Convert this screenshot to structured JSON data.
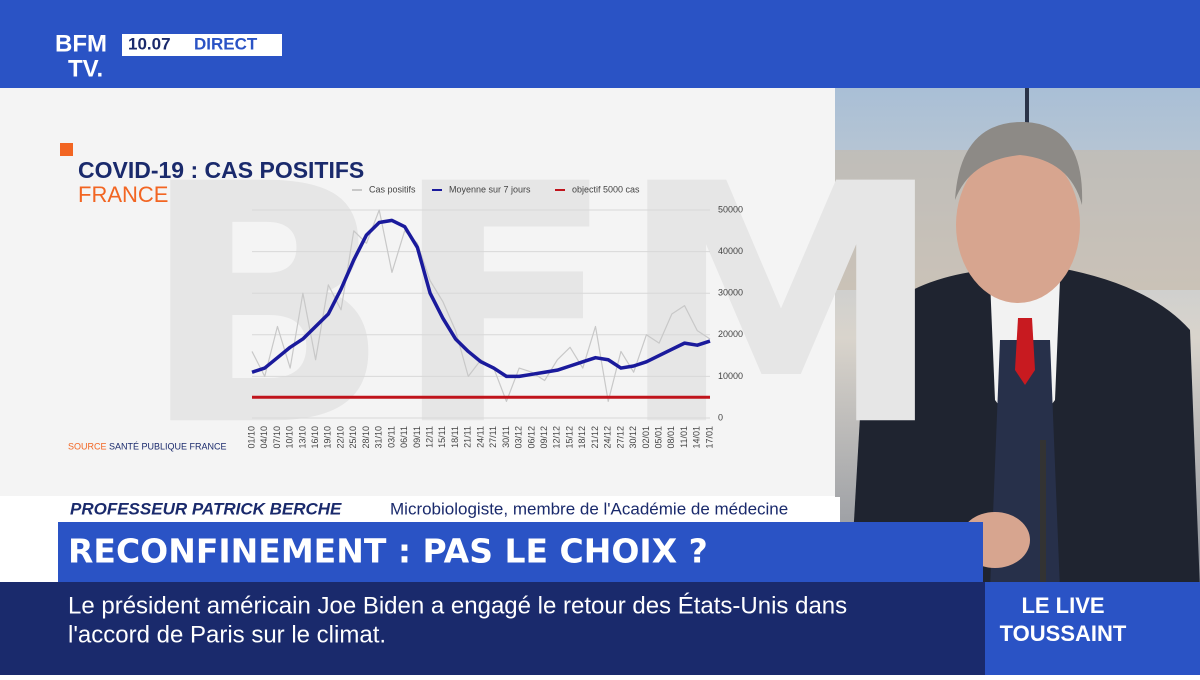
{
  "header": {
    "logo": [
      "BFM",
      "TV."
    ],
    "time": "10.07",
    "live": "DIRECT"
  },
  "chart_data": {
    "type": "line",
    "title": "COVID-19 : CAS POSITIFS",
    "subtitle": "FRANCE",
    "source_label": "SOURCE",
    "source": "SANTÉ PUBLIQUE FRANCE",
    "categories": [
      "01/10",
      "04/10",
      "07/10",
      "10/10",
      "13/10",
      "16/10",
      "19/10",
      "22/10",
      "25/10",
      "28/10",
      "31/10",
      "03/11",
      "06/11",
      "09/11",
      "12/11",
      "15/11",
      "18/11",
      "21/11",
      "24/11",
      "27/11",
      "30/11",
      "03/12",
      "06/12",
      "09/12",
      "12/12",
      "15/12",
      "18/12",
      "21/12",
      "24/12",
      "27/12",
      "30/12",
      "02/01",
      "05/01",
      "08/01",
      "11/01",
      "14/01",
      "17/01"
    ],
    "series": [
      {
        "name": "Cas positifs",
        "color": "#c8c8c8",
        "width": 1.2,
        "values": [
          16000,
          10000,
          22000,
          12000,
          30000,
          14000,
          32000,
          26000,
          45000,
          42000,
          50000,
          35000,
          45000,
          42000,
          33000,
          28000,
          21000,
          10000,
          14000,
          12000,
          4000,
          12000,
          11000,
          9000,
          14000,
          17000,
          12000,
          22000,
          4000,
          16000,
          11000,
          20000,
          18000,
          25000,
          27000,
          21000,
          19000
        ]
      },
      {
        "name": "Moyenne sur 7 jours",
        "color": "#1a1a9c",
        "width": 3.5,
        "values": [
          11000,
          12000,
          14500,
          17000,
          19000,
          22000,
          25000,
          31000,
          38000,
          44000,
          47000,
          47500,
          46000,
          41000,
          30000,
          24000,
          19000,
          16000,
          13500,
          12000,
          10000,
          10000,
          10500,
          11000,
          11500,
          12500,
          13500,
          14500,
          14000,
          12000,
          12500,
          13500,
          15000,
          16500,
          18000,
          17500,
          18500
        ]
      },
      {
        "name": "objectif 5000 cas",
        "color": "#c0141c",
        "width": 3,
        "values": [
          5000,
          5000,
          5000,
          5000,
          5000,
          5000,
          5000,
          5000,
          5000,
          5000,
          5000,
          5000,
          5000,
          5000,
          5000,
          5000,
          5000,
          5000,
          5000,
          5000,
          5000,
          5000,
          5000,
          5000,
          5000,
          5000,
          5000,
          5000,
          5000,
          5000,
          5000,
          5000,
          5000,
          5000,
          5000,
          5000,
          5000
        ]
      }
    ],
    "ylim": [
      0,
      50000
    ],
    "yticks": [
      0,
      10000,
      20000,
      30000,
      40000,
      50000
    ],
    "grid": true
  },
  "lower_third": {
    "name": "PROFESSEUR PATRICK BERCHE",
    "role": "Microbiologiste, membre de l'Académie de médecine"
  },
  "headline": "RECONFINEMENT : PAS LE CHOIX ?",
  "ticker": [
    "Le président américain Joe Biden a engagé le retour des États-Unis dans",
    "l'accord de Paris sur le climat."
  ],
  "show": [
    "LE LIVE",
    "TOUSSAINT"
  ]
}
